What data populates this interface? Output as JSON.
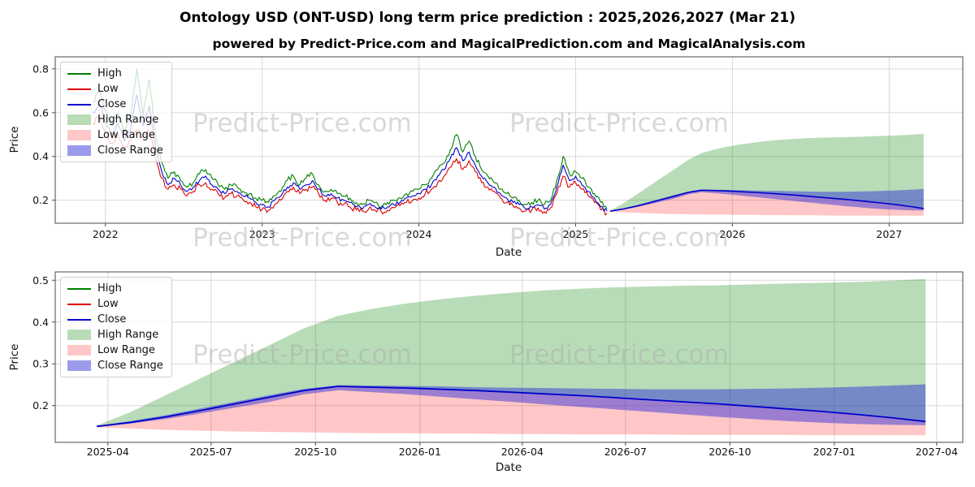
{
  "page": {
    "title": "Ontology USD (ONT-USD) long term price prediction : 2025,2026,2027 (Mar 21)",
    "subtitle": "powered by Predict-Price.com and MagicalPrediction.com and MagicalAnalysis.com"
  },
  "watermark": {
    "text": "Predict-Price.com"
  },
  "colors": {
    "high": "#008000",
    "low": "#dd0000",
    "close": "#0000cc",
    "high_range": "rgba(0,128,0,0.28)",
    "low_range": "rgba(255,0,0,0.22)",
    "close_range": "rgba(45,45,215,0.48)"
  },
  "legend": {
    "items": [
      {
        "label": "High",
        "swatch": "line",
        "color": "#008000"
      },
      {
        "label": "Low",
        "swatch": "line",
        "color": "#dd0000"
      },
      {
        "label": "Close",
        "swatch": "line",
        "color": "#0000cc"
      },
      {
        "label": "High Range",
        "swatch": "patch",
        "color": "rgba(0,128,0,0.28)"
      },
      {
        "label": "Low Range",
        "swatch": "patch",
        "color": "rgba(255,0,0,0.22)"
      },
      {
        "label": "Close Range",
        "swatch": "patch",
        "color": "rgba(45,45,215,0.48)"
      }
    ]
  },
  "chart_data": [
    {
      "type": "line",
      "title": "historical prices 2022-2025 with prediction bands to 2027",
      "xlabel": "Date",
      "ylabel": "Price",
      "xlim": [
        2021.68,
        2027.47
      ],
      "ylim": [
        0.095,
        0.855
      ],
      "grid": true,
      "legend_position": "upper-left",
      "xticks": [
        {
          "v": 2022,
          "label": "2022"
        },
        {
          "v": 2023,
          "label": "2023"
        },
        {
          "v": 2024,
          "label": "2024"
        },
        {
          "v": 2025,
          "label": "2025"
        },
        {
          "v": 2026,
          "label": "2026"
        },
        {
          "v": 2027,
          "label": "2027"
        }
      ],
      "yticks": [
        {
          "v": 0.2,
          "label": "0.2"
        },
        {
          "v": 0.4,
          "label": "0.4"
        },
        {
          "v": 0.6,
          "label": "0.6"
        },
        {
          "v": 0.8,
          "label": "0.8"
        }
      ],
      "historical": {
        "x": [
          2021.92,
          2021.96,
          2022,
          2022.04,
          2022.08,
          2022.12,
          2022.16,
          2022.2,
          2022.24,
          2022.28,
          2022.32,
          2022.36,
          2022.4,
          2022.44,
          2022.48,
          2022.52,
          2022.56,
          2022.6,
          2022.64,
          2022.68,
          2022.72,
          2022.76,
          2022.8,
          2022.84,
          2022.88,
          2022.92,
          2022.96,
          2023,
          2023.04,
          2023.08,
          2023.12,
          2023.16,
          2023.2,
          2023.24,
          2023.28,
          2023.32,
          2023.36,
          2023.4,
          2023.44,
          2023.48,
          2023.52,
          2023.56,
          2023.6,
          2023.64,
          2023.68,
          2023.72,
          2023.76,
          2023.8,
          2023.84,
          2023.88,
          2023.92,
          2023.96,
          2024,
          2024.04,
          2024.08,
          2024.12,
          2024.16,
          2024.2,
          2024.24,
          2024.28,
          2024.32,
          2024.36,
          2024.4,
          2024.44,
          2024.48,
          2024.52,
          2024.56,
          2024.6,
          2024.64,
          2024.68,
          2024.72,
          2024.76,
          2024.8,
          2024.84,
          2024.88,
          2024.92,
          2024.96,
          2025,
          2025.04,
          2025.08,
          2025.12,
          2025.16,
          2025.2
        ],
        "high": [
          0.65,
          0.7,
          0.61,
          0.54,
          0.6,
          0.51,
          0.57,
          0.8,
          0.59,
          0.75,
          0.5,
          0.37,
          0.3,
          0.33,
          0.29,
          0.26,
          0.28,
          0.32,
          0.34,
          0.3,
          0.27,
          0.25,
          0.27,
          0.26,
          0.24,
          0.23,
          0.21,
          0.2,
          0.19,
          0.22,
          0.24,
          0.29,
          0.31,
          0.27,
          0.3,
          0.32,
          0.27,
          0.24,
          0.25,
          0.23,
          0.22,
          0.21,
          0.19,
          0.18,
          0.2,
          0.19,
          0.17,
          0.19,
          0.2,
          0.21,
          0.23,
          0.24,
          0.25,
          0.27,
          0.3,
          0.34,
          0.37,
          0.43,
          0.5,
          0.42,
          0.47,
          0.4,
          0.34,
          0.31,
          0.28,
          0.25,
          0.23,
          0.21,
          0.2,
          0.18,
          0.19,
          0.2,
          0.18,
          0.2,
          0.29,
          0.4,
          0.32,
          0.33,
          0.3,
          0.26,
          0.23,
          0.19,
          0.16
        ],
        "low": [
          0.55,
          0.58,
          0.51,
          0.46,
          0.5,
          0.43,
          0.47,
          0.52,
          0.49,
          0.52,
          0.39,
          0.3,
          0.25,
          0.27,
          0.25,
          0.22,
          0.24,
          0.27,
          0.28,
          0.25,
          0.23,
          0.21,
          0.23,
          0.22,
          0.2,
          0.19,
          0.17,
          0.16,
          0.155,
          0.18,
          0.2,
          0.24,
          0.26,
          0.23,
          0.25,
          0.26,
          0.23,
          0.2,
          0.21,
          0.19,
          0.18,
          0.17,
          0.155,
          0.15,
          0.16,
          0.155,
          0.148,
          0.155,
          0.165,
          0.175,
          0.19,
          0.2,
          0.21,
          0.23,
          0.25,
          0.28,
          0.31,
          0.35,
          0.39,
          0.34,
          0.38,
          0.33,
          0.28,
          0.26,
          0.24,
          0.21,
          0.19,
          0.175,
          0.165,
          0.15,
          0.155,
          0.165,
          0.148,
          0.165,
          0.23,
          0.31,
          0.26,
          0.28,
          0.25,
          0.22,
          0.19,
          0.155,
          0.14
        ],
        "close": [
          0.6,
          0.64,
          0.56,
          0.5,
          0.55,
          0.47,
          0.52,
          0.68,
          0.54,
          0.63,
          0.44,
          0.33,
          0.27,
          0.3,
          0.27,
          0.24,
          0.26,
          0.29,
          0.31,
          0.27,
          0.25,
          0.23,
          0.25,
          0.24,
          0.22,
          0.21,
          0.19,
          0.18,
          0.17,
          0.2,
          0.22,
          0.26,
          0.28,
          0.25,
          0.27,
          0.29,
          0.25,
          0.22,
          0.23,
          0.21,
          0.2,
          0.19,
          0.17,
          0.16,
          0.18,
          0.17,
          0.16,
          0.17,
          0.18,
          0.19,
          0.21,
          0.22,
          0.23,
          0.25,
          0.27,
          0.31,
          0.34,
          0.39,
          0.44,
          0.38,
          0.42,
          0.36,
          0.31,
          0.28,
          0.26,
          0.23,
          0.21,
          0.19,
          0.18,
          0.16,
          0.17,
          0.18,
          0.16,
          0.18,
          0.26,
          0.36,
          0.29,
          0.31,
          0.27,
          0.24,
          0.21,
          0.17,
          0.15
        ]
      },
      "forecast": "shared with detail chart - see chart_data[1].series"
    },
    {
      "type": "area",
      "title": "prediction detail 2025-03 to 2027-03",
      "xlabel": "Date",
      "ylabel": "Price",
      "xlim": [
        2025.12,
        2027.31
      ],
      "ylim": [
        0.112,
        0.52
      ],
      "grid": true,
      "legend_position": "upper-left",
      "xticks": [
        {
          "v": 2025.247,
          "label": "2025-04"
        },
        {
          "v": 2025.496,
          "label": "2025-07"
        },
        {
          "v": 2025.748,
          "label": "2025-10"
        },
        {
          "v": 2026.0,
          "label": "2026-01"
        },
        {
          "v": 2026.247,
          "label": "2026-04"
        },
        {
          "v": 2026.496,
          "label": "2026-07"
        },
        {
          "v": 2026.748,
          "label": "2026-10"
        },
        {
          "v": 2027.0,
          "label": "2027-01"
        },
        {
          "v": 2027.247,
          "label": "2027-04"
        }
      ],
      "yticks": [
        {
          "v": 0.2,
          "label": "0.2"
        },
        {
          "v": 0.3,
          "label": "0.3"
        },
        {
          "v": 0.4,
          "label": "0.4"
        },
        {
          "v": 0.5,
          "label": "0.5"
        }
      ],
      "x_months": [
        "2025-03",
        "2025-04",
        "2025-05",
        "2025-06",
        "2025-07",
        "2025-08",
        "2025-09",
        "2025-10",
        "2025-11",
        "2025-12",
        "2026-01",
        "2026-02",
        "2026-03",
        "2026-04",
        "2026-05",
        "2026-06",
        "2026-07",
        "2026-08",
        "2026-09",
        "2026-10",
        "2026-11",
        "2026-12",
        "2027-01",
        "2027-02",
        "2027-03"
      ],
      "x_years": [
        2025.22,
        2025.303,
        2025.387,
        2025.47,
        2025.553,
        2025.637,
        2025.72,
        2025.803,
        2025.887,
        2025.97,
        2026.053,
        2026.137,
        2026.22,
        2026.303,
        2026.387,
        2026.47,
        2026.553,
        2026.637,
        2026.72,
        2026.803,
        2026.887,
        2026.97,
        2027.053,
        2027.137,
        2027.22
      ],
      "series": {
        "close": [
          0.15,
          0.16,
          0.173,
          0.188,
          0.204,
          0.22,
          0.236,
          0.246,
          0.244,
          0.242,
          0.239,
          0.236,
          0.232,
          0.228,
          0.224,
          0.219,
          0.214,
          0.209,
          0.204,
          0.198,
          0.192,
          0.186,
          0.179,
          0.171,
          0.162
        ],
        "high_range_top": [
          0.152,
          0.185,
          0.225,
          0.265,
          0.305,
          0.345,
          0.385,
          0.415,
          0.432,
          0.445,
          0.455,
          0.463,
          0.47,
          0.476,
          0.48,
          0.483,
          0.485,
          0.487,
          0.488,
          0.49,
          0.492,
          0.494,
          0.496,
          0.499,
          0.503
        ],
        "low_range_bottom": [
          0.148,
          0.145,
          0.142,
          0.14,
          0.138,
          0.137,
          0.136,
          0.135,
          0.134,
          0.134,
          0.133,
          0.133,
          0.132,
          0.132,
          0.131,
          0.131,
          0.131,
          0.13,
          0.13,
          0.13,
          0.13,
          0.129,
          0.129,
          0.129,
          0.129
        ],
        "close_range_top": [
          0.151,
          0.163,
          0.177,
          0.193,
          0.209,
          0.225,
          0.24,
          0.249,
          0.248,
          0.247,
          0.246,
          0.244,
          0.243,
          0.242,
          0.241,
          0.24,
          0.239,
          0.239,
          0.239,
          0.24,
          0.241,
          0.243,
          0.245,
          0.248,
          0.251
        ],
        "close_range_bottom": [
          0.149,
          0.157,
          0.168,
          0.181,
          0.195,
          0.209,
          0.227,
          0.237,
          0.232,
          0.227,
          0.221,
          0.215,
          0.209,
          0.203,
          0.197,
          0.191,
          0.185,
          0.179,
          0.173,
          0.168,
          0.163,
          0.159,
          0.156,
          0.154,
          0.153
        ]
      }
    }
  ]
}
